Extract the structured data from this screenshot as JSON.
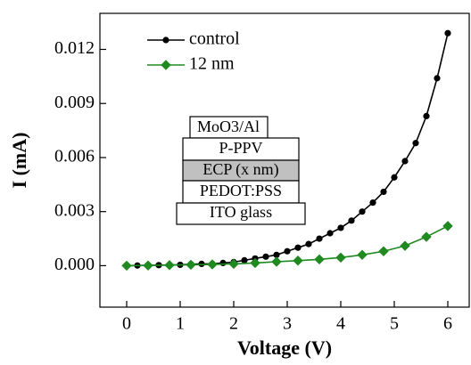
{
  "chart_data": {
    "type": "line",
    "xlabel": "Voltage (V)",
    "ylabel": "I (mA)",
    "xlim": [
      -0.5,
      6.4
    ],
    "xticks": [
      0,
      1,
      2,
      3,
      4,
      5,
      6
    ],
    "ylim": [
      -0.0023,
      0.014
    ],
    "yticks": [
      {
        "value": 0,
        "label": "0.000"
      },
      {
        "value": 0.003,
        "label": "0.003"
      },
      {
        "value": 0.006,
        "label": "0.006"
      },
      {
        "value": 0.009,
        "label": "0.009"
      },
      {
        "value": 0.012,
        "label": "0.012"
      }
    ],
    "legend": "upper left",
    "series": [
      {
        "name": "control",
        "color": "#000000",
        "marker": "circle",
        "x": [
          0,
          0.2,
          0.4,
          0.6,
          0.8,
          1.0,
          1.2,
          1.4,
          1.6,
          1.8,
          2.0,
          2.2,
          2.4,
          2.6,
          2.8,
          3.0,
          3.2,
          3.4,
          3.6,
          3.8,
          4.0,
          4.2,
          4.4,
          4.6,
          4.8,
          5.0,
          5.2,
          5.4,
          5.6,
          5.8,
          6.0
        ],
        "values": [
          0,
          1e-05,
          2e-05,
          3e-05,
          4e-05,
          5e-05,
          8e-05,
          0.0001,
          0.0001,
          0.00015,
          0.0002,
          0.0003,
          0.0004,
          0.0005,
          0.0006,
          0.0008,
          0.001,
          0.0012,
          0.0015,
          0.0018,
          0.0021,
          0.0025,
          0.003,
          0.0035,
          0.0041,
          0.0049,
          0.0058,
          0.0068,
          0.0083,
          0.0104,
          0.0129
        ]
      },
      {
        "name": "12 nm",
        "color": "#1f8a1f",
        "marker": "diamond",
        "x": [
          0,
          0.4,
          0.8,
          1.2,
          1.6,
          2.0,
          2.4,
          2.8,
          3.2,
          3.6,
          4.0,
          4.4,
          4.8,
          5.2,
          5.6,
          6.0
        ],
        "values": [
          0,
          1e-05,
          3e-05,
          5e-05,
          7e-05,
          0.0001,
          0.00015,
          0.00022,
          0.00028,
          0.00035,
          0.00045,
          0.0006,
          0.0008,
          0.0011,
          0.0016,
          0.0022
        ]
      }
    ],
    "inset_layers": [
      "MoO3/Al",
      "P-PPV",
      "ECP (x nm)",
      "PEDOT:PSS",
      "ITO glass"
    ]
  }
}
